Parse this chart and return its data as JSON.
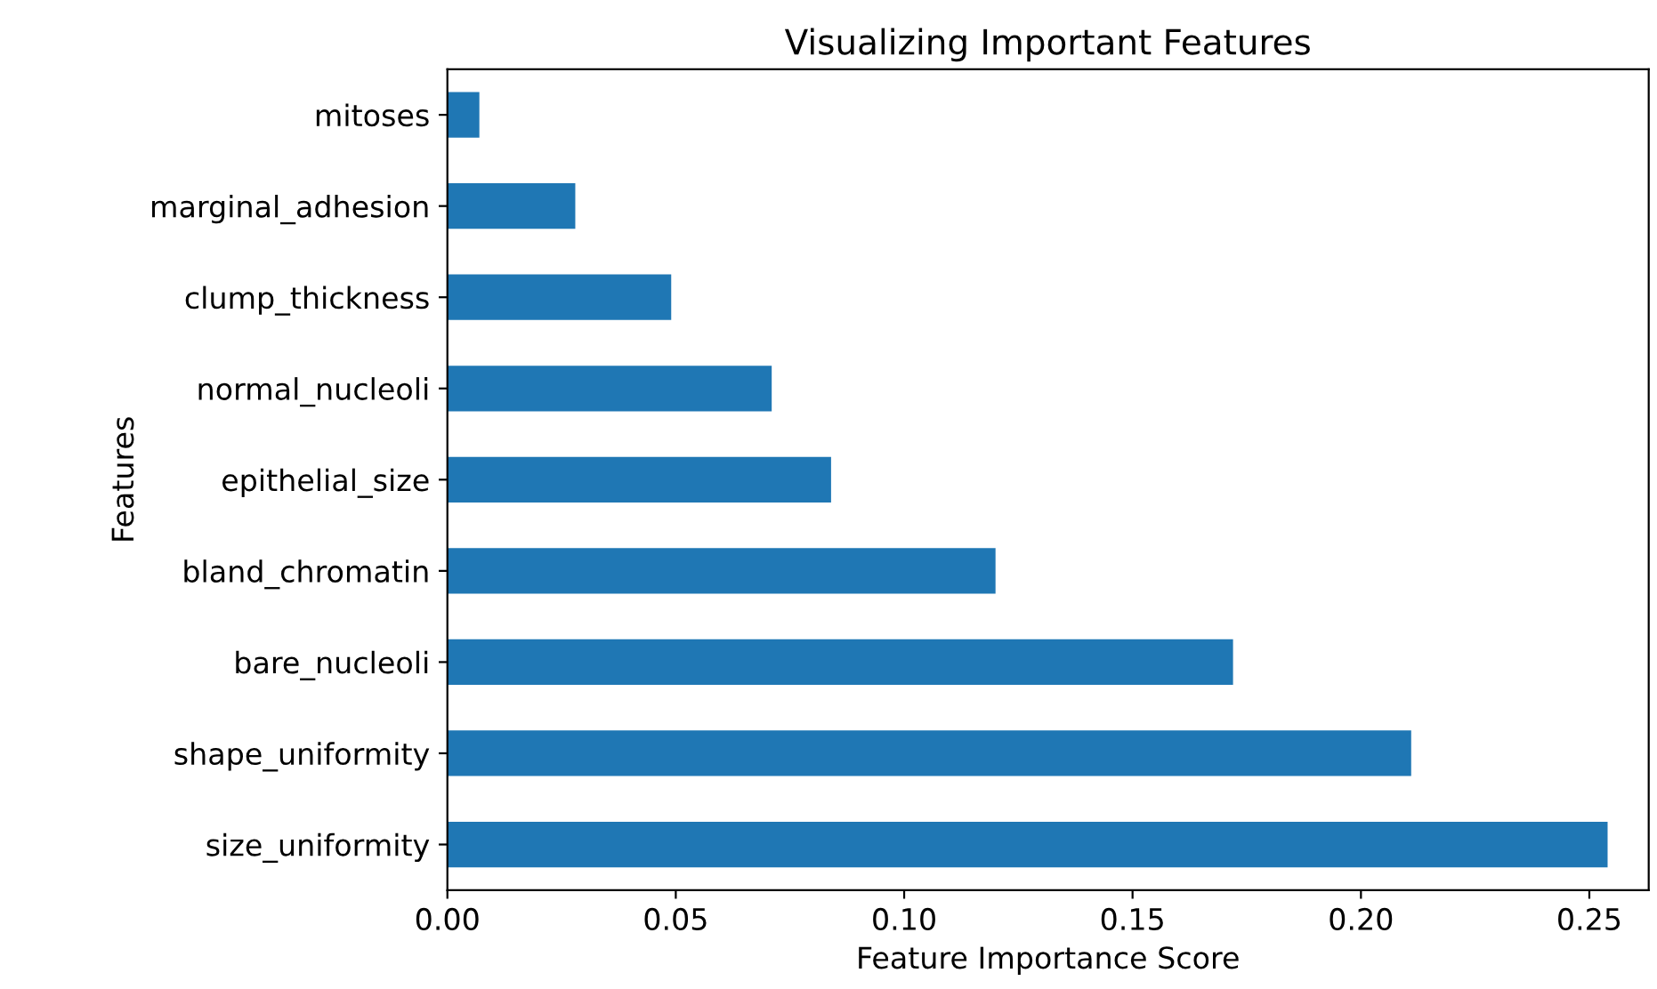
{
  "chart_data": {
    "type": "bar",
    "orientation": "horizontal",
    "title": "Visualizing Important Features",
    "xlabel": "Feature Importance Score",
    "ylabel": "Features",
    "categories": [
      "mitoses",
      "marginal_adhesion",
      "clump_thickness",
      "normal_nucleoli",
      "epithelial_size",
      "bland_chromatin",
      "bare_nucleoli",
      "shape_uniformity",
      "size_uniformity"
    ],
    "values": [
      0.007,
      0.028,
      0.049,
      0.071,
      0.084,
      0.12,
      0.172,
      0.211,
      0.254
    ],
    "color": "#1f77b4",
    "xlim": [
      0,
      0.263
    ],
    "xticks": [
      {
        "value": 0,
        "label": "0.00"
      },
      0.05,
      {
        "value": 0.1,
        "label": "0.10"
      },
      0.15,
      {
        "value": 0.2,
        "label": "0.20"
      },
      0.25
    ],
    "grid": false,
    "legend": false
  }
}
